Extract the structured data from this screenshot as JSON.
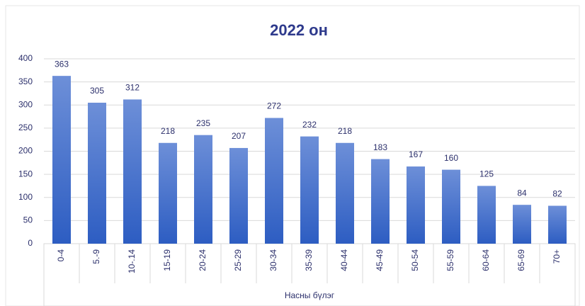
{
  "chart_data": {
    "type": "bar",
    "title": "2022 он",
    "x_label": "Насны бүлэг",
    "categories": [
      "0-4",
      "5.-9",
      "10-.14",
      "15-19",
      "20-24",
      "25-29",
      "30-34",
      "35-39",
      "40-44",
      "45-49",
      "50-54",
      "55-59",
      "60-64",
      "65-69",
      "70+"
    ],
    "values": [
      363,
      305,
      312,
      218,
      235,
      207,
      272,
      232,
      218,
      183,
      167,
      160,
      125,
      84,
      82
    ],
    "color": "#3a67c9",
    "ylim": [
      0,
      400
    ],
    "yticks": [
      0,
      50,
      100,
      150,
      200,
      250,
      300,
      350,
      400
    ],
    "grid": true
  }
}
